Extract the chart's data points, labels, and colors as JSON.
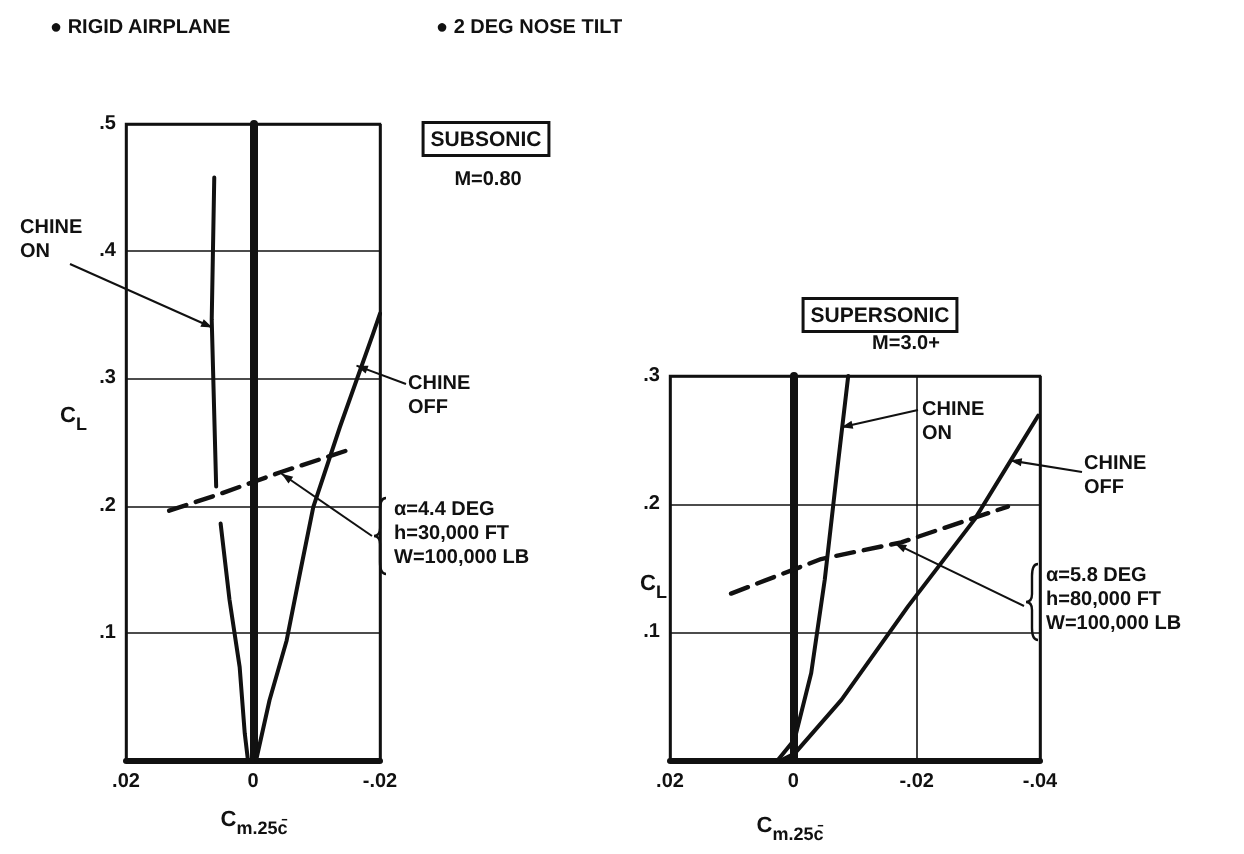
{
  "chart_data": [
    {
      "type": "line",
      "xlabel": "C$_{m.25c̄}$",
      "ylabel": "C$_{L}$",
      "xlim": [
        0.02,
        -0.02
      ],
      "ylim": [
        0,
        0.5
      ],
      "xticks": [
        {
          "value": 0.02,
          "label": ".02"
        },
        {
          "value": 0,
          "label": "0"
        },
        {
          "value": -0.02,
          "label": "-.02"
        }
      ],
      "yticks": [
        {
          "value": 0.1,
          "label": ".1"
        },
        {
          "value": 0.2,
          "label": ".2"
        },
        {
          "value": 0.3,
          "label": ".3"
        },
        {
          "value": 0.4,
          "label": ".4"
        },
        {
          "value": 0.5,
          "label": ".5"
        }
      ],
      "grid": true,
      "marker": "none",
      "annotations": [
        "● RIGID AIRPLANE",
        "● 2 DEG NOSE TILT",
        "SUBSONIC",
        "M=0.80",
        {
          "text": "CHINE\nON",
          "x": 0.0064,
          "y": 0.34
        },
        {
          "text": "CHINE\nOFF",
          "x": -0.0163,
          "y": 0.31
        },
        {
          "text": "α=4.4 DEG\nh=30,000 FT\nW=100,000 LB",
          "x": -0.0045,
          "y": 0.225
        }
      ],
      "series": [
        {
          "color": "#111111",
          "line_style": "solid",
          "x": [
            0.0061,
            0.0065,
            0.0058
          ],
          "values": [
            0.458,
            0.346,
            0.215
          ]
        },
        {
          "color": "#111111",
          "line_style": "solid",
          "x": [
            0.0051,
            0.0037,
            0.0021,
            0.0013,
            0.0008
          ],
          "values": [
            0.186,
            0.126,
            0.073,
            0.021,
            0
          ]
        },
        {
          "color": "#111111",
          "line_style": "solid",
          "x": [
            -0.02,
            -0.0189,
            -0.0137,
            -0.0095,
            -0.0074,
            -0.0053,
            -0.0026,
            -0.0005
          ],
          "values": [
            0.351,
            0.335,
            0.262,
            0.199,
            0.147,
            0.094,
            0.047,
            0
          ]
        },
        {
          "color": "#111111",
          "line_style": "dashed",
          "x": [
            0.0132,
            0.0053,
            -0.0042,
            -0.0158
          ],
          "values": [
            0.196,
            0.209,
            0.226,
            0.245
          ]
        }
      ]
    },
    {
      "type": "line",
      "xlabel": "C$_{m.25c̄}$",
      "ylabel": "C$_{L}$",
      "xlim": [
        0.02,
        -0.04
      ],
      "ylim": [
        0,
        0.3
      ],
      "xticks": [
        {
          "value": 0.02,
          "label": ".02"
        },
        {
          "value": 0,
          "label": "0"
        },
        {
          "value": -0.02,
          "label": "-.02"
        },
        {
          "value": -0.04,
          "label": "-.04"
        }
      ],
      "yticks": [
        {
          "value": 0.1,
          "label": ".1"
        },
        {
          "value": 0.2,
          "label": ".2"
        },
        {
          "value": 0.3,
          "label": ".3"
        }
      ],
      "grid": true,
      "marker": "none",
      "annotations": [
        "SUPERSONIC",
        "M=3.0+",
        {
          "text": "CHINE\nON",
          "x": -0.0078,
          "y": 0.26
        },
        {
          "text": "CHINE\nOFF",
          "x": -0.0352,
          "y": 0.234
        },
        {
          "text": "α=5.8 DEG\nh=80,000 FT\nW=100,000 LB",
          "x": -0.0165,
          "y": 0.169
        }
      ],
      "series": [
        {
          "color": "#111111",
          "line_style": "solid",
          "x": [
            -0.0089,
            -0.0072,
            -0.0051,
            -0.0029,
            -0.0002,
            0.0025
          ],
          "values": [
            0.3,
            0.23,
            0.141,
            0.068,
            0.016,
            0
          ]
        },
        {
          "color": "#111111",
          "line_style": "solid",
          "x": [
            -0.0397,
            -0.0294,
            -0.0186,
            -0.0078,
            -0.0002,
            0.0019
          ],
          "values": [
            0.269,
            0.188,
            0.12,
            0.047,
            0.005,
            0
          ]
        },
        {
          "color": "#111111",
          "line_style": "dashed",
          "x": [
            0.0101,
            -0.0045,
            -0.0175,
            -0.0348
          ],
          "values": [
            0.13,
            0.157,
            0.17,
            0.198
          ]
        }
      ]
    }
  ]
}
